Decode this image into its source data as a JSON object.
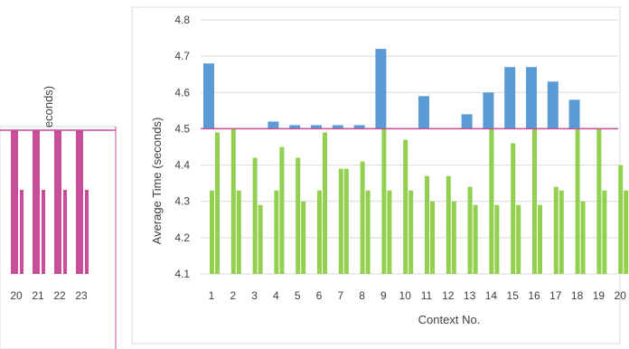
{
  "chart_data": [
    {
      "panel": "main",
      "type": "bar",
      "xlabel": "Context No.",
      "ylabel": "Average Time (seconds)",
      "ylim": [
        4.1,
        4.8
      ],
      "yticks": [
        4.1,
        4.2,
        4.3,
        4.4,
        4.5,
        4.6,
        4.7,
        4.8
      ],
      "categories": [
        "1",
        "2",
        "3",
        "4",
        "5",
        "6",
        "7",
        "8",
        "9",
        "10",
        "11",
        "12",
        "13",
        "14",
        "15",
        "16",
        "17",
        "18",
        "19",
        "20"
      ],
      "grid": true,
      "reference_line": {
        "value": 4.5,
        "color": "#c94e9a"
      },
      "series": [
        {
          "color": "#5b9bd5",
          "values": [
            4.68,
            4.5,
            4.5,
            4.52,
            4.51,
            4.51,
            4.51,
            4.51,
            4.72,
            4.5,
            4.59,
            4.5,
            4.54,
            4.6,
            4.67,
            4.67,
            4.63,
            4.58,
            4.5,
            4.5
          ]
        },
        {
          "color": "#92d050",
          "values": [
            4.33,
            4.5,
            4.42,
            4.33,
            4.42,
            4.33,
            4.39,
            4.41,
            4.5,
            4.47,
            4.37,
            4.37,
            4.34,
            4.5,
            4.46,
            4.5,
            4.34,
            4.5,
            4.5,
            4.4
          ]
        },
        {
          "color": "#92d050",
          "values": [
            4.49,
            4.33,
            4.29,
            4.45,
            4.3,
            4.49,
            4.39,
            4.33,
            4.33,
            4.33,
            4.3,
            4.3,
            4.29,
            4.29,
            4.29,
            4.29,
            4.33,
            4.3,
            4.33,
            4.33
          ]
        }
      ]
    },
    {
      "panel": "left-fragment",
      "type": "bar",
      "categories": [
        "20",
        "21",
        "22",
        "23"
      ],
      "partial_label": "econds)",
      "series": [
        {
          "color": "#c94e9a",
          "values": [
            4.5,
            4.5,
            4.5,
            4.5
          ]
        }
      ]
    }
  ],
  "colors": {
    "blue": "#5b9bd5",
    "green": "#92d050",
    "magenta": "#c94e9a",
    "grid": "#d9d9d9",
    "text": "#404040"
  }
}
